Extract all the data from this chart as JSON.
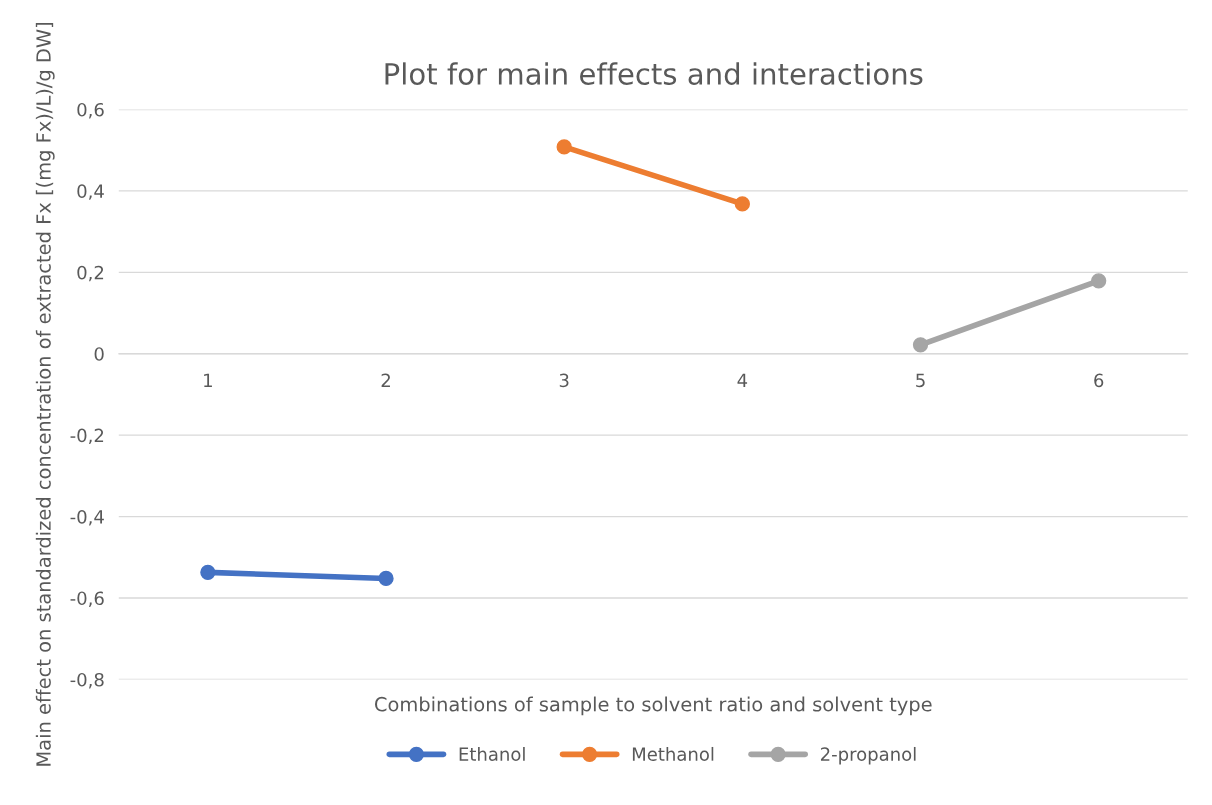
{
  "chart_data": {
    "type": "line",
    "title": "Plot for main effects and interactions",
    "xlabel": "Combinations of sample to solvent ratio and solvent type",
    "ylabel": "Main effect on standardized concentration of extracted Fx [(mg Fx)/L)/g DW]",
    "categories": [
      "1",
      "2",
      "3",
      "4",
      "5",
      "6"
    ],
    "series": [
      {
        "name": "Ethanol",
        "color": "#4472c4",
        "values": [
          -0.537,
          -0.552,
          null,
          null,
          null,
          null
        ]
      },
      {
        "name": "Methanol",
        "color": "#ed7d31",
        "values": [
          null,
          null,
          0.508,
          0.368,
          null,
          null
        ]
      },
      {
        "name": "2-propanol",
        "color": "#a5a5a5",
        "values": [
          null,
          null,
          null,
          null,
          0.022,
          0.179
        ]
      }
    ],
    "ylim": [
      -0.8,
      0.6
    ],
    "yticks": [
      {
        "value": -0.8,
        "label": "-0,8"
      },
      {
        "value": -0.6,
        "label": "-0,6"
      },
      {
        "value": -0.4,
        "label": "-0,4"
      },
      {
        "value": -0.2,
        "label": "-0,2"
      },
      {
        "value": 0,
        "label": "0"
      },
      {
        "value": 0.2,
        "label": "0,2"
      },
      {
        "value": 0.4,
        "label": "0,4"
      },
      {
        "value": 0.6,
        "label": "0,6"
      }
    ],
    "grid": "y",
    "legend": "bottom",
    "marker": "circle",
    "line_style": "solid"
  }
}
